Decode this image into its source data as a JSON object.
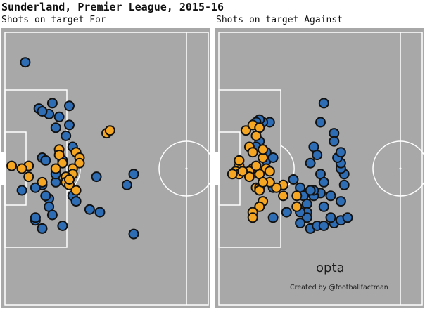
{
  "title": "Sunderland, Premier League, 2015-16",
  "colors": {
    "pitch": "#a8a8a8",
    "lines": "#ffffff",
    "for": "#f5a623",
    "against": "#2e6db4",
    "outline": "#111111"
  },
  "branding": {
    "logo": "opta",
    "credit": "Created by @footballfactman"
  },
  "chart_data": [
    {
      "type": "scatter",
      "title": "Shots on target For",
      "xlim": [
        0,
        60
      ],
      "ylim": [
        0,
        100
      ],
      "series": [
        {
          "color": "#2e6db4",
          "points": [
            [
              6,
              11
            ],
            [
              10,
              28
            ],
            [
              14,
              26
            ],
            [
              13,
              30
            ],
            [
              16,
              31
            ],
            [
              19,
              27
            ],
            [
              11,
              29
            ],
            [
              15,
              35
            ],
            [
              19,
              34
            ],
            [
              18,
              38
            ],
            [
              11,
              46
            ],
            [
              12,
              47
            ],
            [
              20,
              42
            ],
            [
              17,
              47
            ],
            [
              15,
              55
            ],
            [
              11,
              56
            ],
            [
              15,
              52
            ],
            [
              9,
              57
            ],
            [
              5,
              58
            ],
            [
              13,
              61
            ],
            [
              12,
              60
            ],
            [
              13,
              64
            ],
            [
              14,
              67
            ],
            [
              17,
              71
            ],
            [
              11,
              72
            ],
            [
              20,
              60
            ],
            [
              27,
              53
            ],
            [
              38,
              52
            ],
            [
              36,
              56
            ],
            [
              25,
              65
            ],
            [
              28,
              66
            ],
            [
              9,
              69
            ],
            [
              9,
              68
            ],
            [
              38,
              74
            ],
            [
              21,
              62
            ]
          ]
        },
        {
          "color": "#f5a623",
          "points": [
            [
              2,
              49
            ],
            [
              7,
              49
            ],
            [
              5,
              50
            ],
            [
              7,
              53
            ],
            [
              11,
              55
            ],
            [
              16,
              43
            ],
            [
              16,
              45
            ],
            [
              21,
              44
            ],
            [
              22,
              46
            ],
            [
              22,
              48
            ],
            [
              20,
              50
            ],
            [
              20,
              52
            ],
            [
              18,
              53
            ],
            [
              18,
              55
            ],
            [
              19,
              56
            ],
            [
              21,
              58
            ],
            [
              19,
              54
            ],
            [
              30,
              37
            ],
            [
              31,
              36
            ],
            [
              17,
              48
            ],
            [
              15,
              50
            ]
          ]
        }
      ]
    },
    {
      "type": "scatter",
      "title": "Shots on target Against",
      "xlim": [
        0,
        60
      ],
      "ylim": [
        0,
        100
      ],
      "series": [
        {
          "color": "#2e6db4",
          "points": [
            [
              31,
              26
            ],
            [
              30,
              33
            ],
            [
              34,
              37
            ],
            [
              34,
              40
            ],
            [
              28,
              42
            ],
            [
              29,
              45
            ],
            [
              27,
              48
            ],
            [
              30,
              52
            ],
            [
              31,
              55
            ],
            [
              30,
              59
            ],
            [
              28,
              60
            ],
            [
              22,
              54
            ],
            [
              24,
              57
            ],
            [
              25,
              60
            ],
            [
              26,
              63
            ],
            [
              23,
              64
            ],
            [
              26,
              66
            ],
            [
              26,
              68
            ],
            [
              24,
              70
            ],
            [
              27,
              72
            ],
            [
              29,
              71
            ],
            [
              31,
              71
            ],
            [
              34,
              70
            ],
            [
              36,
              69
            ],
            [
              38,
              68
            ],
            [
              36,
              62
            ],
            [
              33,
              60
            ],
            [
              37,
              56
            ],
            [
              37,
              52
            ],
            [
              36,
              50
            ],
            [
              36,
              48
            ],
            [
              35,
              46
            ],
            [
              36,
              44
            ],
            [
              28,
              58
            ],
            [
              20,
              66
            ],
            [
              16,
              68
            ],
            [
              16,
              57
            ],
            [
              14,
              47
            ],
            [
              16,
              46
            ],
            [
              14,
              44
            ],
            [
              12,
              40
            ],
            [
              15,
              33
            ],
            [
              13,
              33
            ],
            [
              12,
              32
            ],
            [
              11,
              42
            ],
            [
              11,
              33
            ],
            [
              31,
              64
            ],
            [
              27,
              58
            ],
            [
              33,
              68
            ],
            [
              24,
              66
            ]
          ]
        },
        {
          "color": "#f5a623",
          "points": [
            [
              8,
              36
            ],
            [
              10,
              34
            ],
            [
              12,
              35
            ],
            [
              11,
              38
            ],
            [
              9,
              42
            ],
            [
              10,
              44
            ],
            [
              13,
              46
            ],
            [
              14,
              50
            ],
            [
              12,
              52
            ],
            [
              10,
              50
            ],
            [
              9,
              51
            ],
            [
              6,
              49
            ],
            [
              5,
              51
            ],
            [
              6,
              52
            ],
            [
              11,
              57
            ],
            [
              12,
              57
            ],
            [
              13,
              62
            ],
            [
              12,
              64
            ],
            [
              10,
              66
            ],
            [
              10,
              68
            ],
            [
              12,
              58
            ],
            [
              19,
              56
            ],
            [
              19,
              60
            ],
            [
              17,
              57
            ],
            [
              15,
              55
            ],
            [
              13,
              55
            ],
            [
              9,
              53
            ],
            [
              7,
              51
            ],
            [
              11,
              49
            ],
            [
              23,
              64
            ],
            [
              4,
              52
            ],
            [
              6,
              47
            ],
            [
              13,
              43
            ],
            [
              15,
              51
            ],
            [
              23,
              60
            ]
          ]
        }
      ]
    }
  ]
}
